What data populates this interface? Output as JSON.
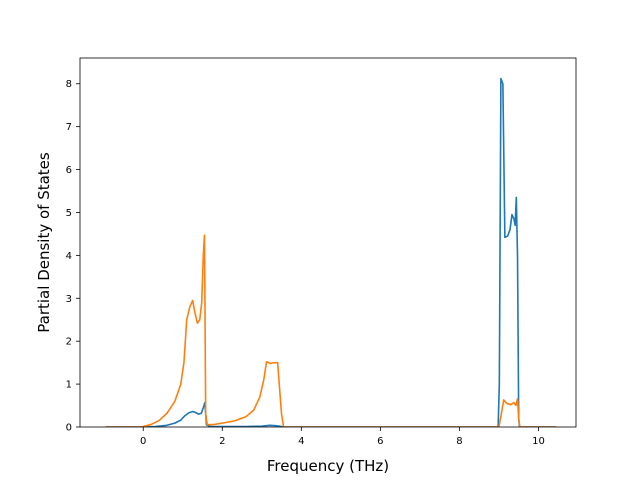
{
  "chart_data": {
    "type": "line",
    "xlabel": "Frequency (THz)",
    "ylabel": "Partial Density of States",
    "xlim": [
      -1.6,
      10.95
    ],
    "ylim": [
      0,
      8.6
    ],
    "xticks": [
      0,
      2,
      4,
      6,
      8,
      10
    ],
    "yticks": [
      0,
      1,
      2,
      3,
      4,
      5,
      6,
      7,
      8
    ],
    "grid": false,
    "series": [
      {
        "color": "#1f77b4",
        "points": [
          [
            -0.95,
            0
          ],
          [
            0.0,
            0
          ],
          [
            0.3,
            0.01
          ],
          [
            0.6,
            0.04
          ],
          [
            0.8,
            0.09
          ],
          [
            0.95,
            0.16
          ],
          [
            1.05,
            0.26
          ],
          [
            1.15,
            0.33
          ],
          [
            1.25,
            0.36
          ],
          [
            1.32,
            0.34
          ],
          [
            1.4,
            0.3
          ],
          [
            1.47,
            0.32
          ],
          [
            1.52,
            0.45
          ],
          [
            1.56,
            0.57
          ],
          [
            1.6,
            0.05
          ],
          [
            1.7,
            0.01
          ],
          [
            2.0,
            0.01
          ],
          [
            2.6,
            0.01
          ],
          [
            3.0,
            0.02
          ],
          [
            3.2,
            0.04
          ],
          [
            3.35,
            0.03
          ],
          [
            3.5,
            0.01
          ],
          [
            3.6,
            0
          ],
          [
            8.98,
            0
          ],
          [
            9.01,
            1.0
          ],
          [
            9.05,
            8.12
          ],
          [
            9.1,
            8.0
          ],
          [
            9.15,
            4.42
          ],
          [
            9.22,
            4.45
          ],
          [
            9.28,
            4.6
          ],
          [
            9.33,
            4.95
          ],
          [
            9.38,
            4.85
          ],
          [
            9.41,
            4.7
          ],
          [
            9.44,
            5.35
          ],
          [
            9.47,
            4.0
          ],
          [
            9.5,
            0.2
          ],
          [
            9.52,
            0
          ],
          [
            10.45,
            0
          ]
        ]
      },
      {
        "color": "#ff7f0e",
        "points": [
          [
            -0.95,
            0
          ],
          [
            -0.1,
            0
          ],
          [
            0.0,
            0.01
          ],
          [
            0.2,
            0.06
          ],
          [
            0.4,
            0.15
          ],
          [
            0.6,
            0.32
          ],
          [
            0.8,
            0.6
          ],
          [
            0.95,
            1.0
          ],
          [
            1.03,
            1.5
          ],
          [
            1.1,
            2.5
          ],
          [
            1.18,
            2.8
          ],
          [
            1.25,
            2.95
          ],
          [
            1.3,
            2.7
          ],
          [
            1.37,
            2.42
          ],
          [
            1.43,
            2.5
          ],
          [
            1.48,
            2.9
          ],
          [
            1.52,
            4.0
          ],
          [
            1.55,
            4.47
          ],
          [
            1.58,
            0.3
          ],
          [
            1.62,
            0.05
          ],
          [
            1.8,
            0.06
          ],
          [
            2.0,
            0.09
          ],
          [
            2.3,
            0.14
          ],
          [
            2.6,
            0.24
          ],
          [
            2.8,
            0.4
          ],
          [
            2.95,
            0.7
          ],
          [
            3.05,
            1.1
          ],
          [
            3.12,
            1.52
          ],
          [
            3.22,
            1.48
          ],
          [
            3.3,
            1.5
          ],
          [
            3.4,
            1.5
          ],
          [
            3.5,
            0.3
          ],
          [
            3.55,
            0
          ],
          [
            9.0,
            0
          ],
          [
            9.05,
            0.25
          ],
          [
            9.12,
            0.63
          ],
          [
            9.2,
            0.55
          ],
          [
            9.3,
            0.52
          ],
          [
            9.38,
            0.57
          ],
          [
            9.43,
            0.5
          ],
          [
            9.47,
            0.66
          ],
          [
            9.5,
            0.2
          ],
          [
            9.53,
            0
          ],
          [
            10.45,
            0
          ]
        ]
      }
    ]
  }
}
